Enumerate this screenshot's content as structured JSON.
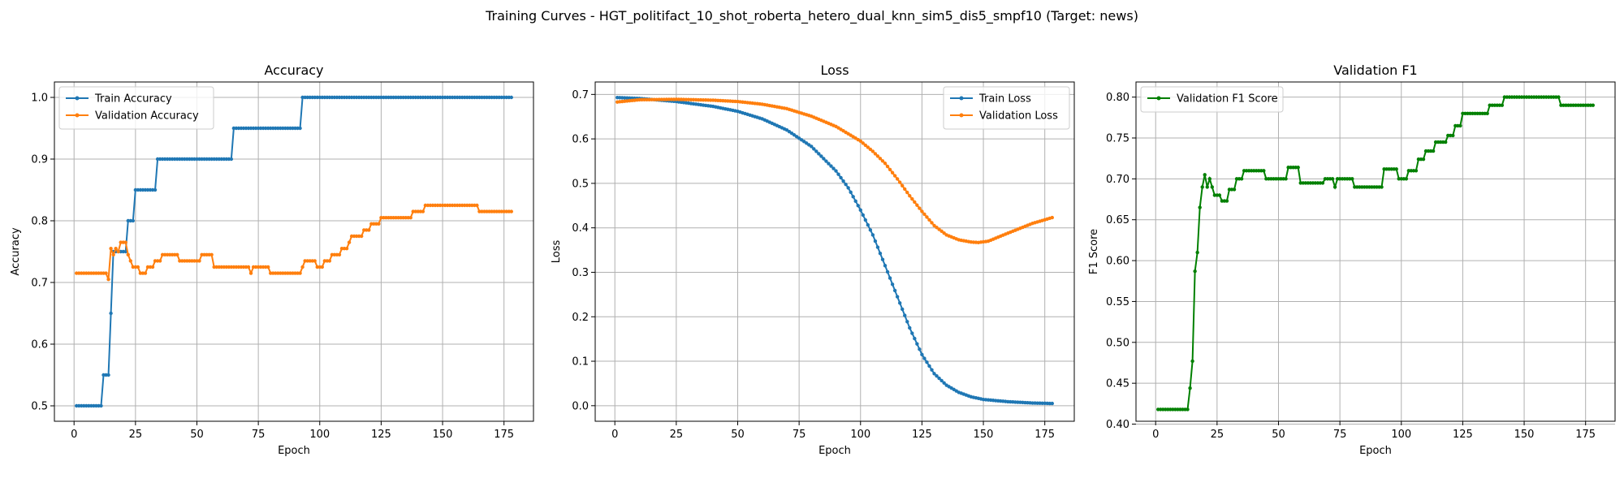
{
  "figure_title": "Training Curves - HGT_politifact_10_shot_roberta_hetero_dual_knn_sim5_dis5_smpf10 (Target: news)",
  "colors": {
    "blue": "#1f77b4",
    "orange": "#ff7f0e",
    "green": "#008000"
  },
  "chart_data": [
    {
      "type": "line",
      "title": "Accuracy",
      "xlabel": "Epoch",
      "ylabel": "Accuracy",
      "xlim": [
        -8,
        187
      ],
      "ylim": [
        0.475,
        1.025
      ],
      "xticks": [
        0,
        25,
        50,
        75,
        100,
        125,
        150,
        175
      ],
      "yticks": [
        0.5,
        0.6,
        0.7,
        0.8,
        0.9,
        1.0
      ],
      "ytick_labels": [
        "0.5",
        "0.6",
        "0.7",
        "0.8",
        "0.9",
        "1.0"
      ],
      "grid": true,
      "legend_position": "upper-left",
      "series": [
        {
          "name": "Train Accuracy",
          "color": "#1f77b4",
          "knots": [
            [
              1,
              0.5
            ],
            [
              11,
              0.5
            ],
            [
              12,
              0.55
            ],
            [
              14,
              0.55
            ],
            [
              15,
              0.65
            ],
            [
              16,
              0.75
            ],
            [
              21,
              0.75
            ],
            [
              22,
              0.8
            ],
            [
              24,
              0.8
            ],
            [
              25,
              0.85
            ],
            [
              33,
              0.85
            ],
            [
              34,
              0.9
            ],
            [
              64,
              0.9
            ],
            [
              65,
              0.95
            ],
            [
              92,
              0.95
            ],
            [
              93,
              1.0
            ],
            [
              178,
              1.0
            ]
          ]
        },
        {
          "name": "Validation Accuracy",
          "color": "#ff7f0e",
          "knots": [
            [
              1,
              0.715
            ],
            [
              13,
              0.715
            ],
            [
              14,
              0.705
            ],
            [
              15,
              0.755
            ],
            [
              16,
              0.745
            ],
            [
              17,
              0.755
            ],
            [
              18,
              0.75
            ],
            [
              19,
              0.765
            ],
            [
              21,
              0.765
            ],
            [
              22,
              0.745
            ],
            [
              23,
              0.735
            ],
            [
              24,
              0.725
            ],
            [
              26,
              0.725
            ],
            [
              27,
              0.715
            ],
            [
              29,
              0.715
            ],
            [
              30,
              0.725
            ],
            [
              32,
              0.725
            ],
            [
              33,
              0.735
            ],
            [
              35,
              0.735
            ],
            [
              36,
              0.745
            ],
            [
              42,
              0.745
            ],
            [
              43,
              0.735
            ],
            [
              51,
              0.735
            ],
            [
              52,
              0.745
            ],
            [
              56,
              0.745
            ],
            [
              57,
              0.725
            ],
            [
              71,
              0.725
            ],
            [
              72,
              0.715
            ],
            [
              73,
              0.725
            ],
            [
              79,
              0.725
            ],
            [
              80,
              0.715
            ],
            [
              92,
              0.715
            ],
            [
              93,
              0.725
            ],
            [
              94,
              0.735
            ],
            [
              98,
              0.735
            ],
            [
              99,
              0.725
            ],
            [
              101,
              0.725
            ],
            [
              102,
              0.735
            ],
            [
              104,
              0.735
            ],
            [
              105,
              0.745
            ],
            [
              108,
              0.745
            ],
            [
              109,
              0.755
            ],
            [
              111,
              0.755
            ],
            [
              112,
              0.765
            ],
            [
              113,
              0.775
            ],
            [
              117,
              0.775
            ],
            [
              118,
              0.785
            ],
            [
              120,
              0.785
            ],
            [
              121,
              0.795
            ],
            [
              124,
              0.795
            ],
            [
              125,
              0.805
            ],
            [
              137,
              0.805
            ],
            [
              138,
              0.815
            ],
            [
              142,
              0.815
            ],
            [
              143,
              0.825
            ],
            [
              164,
              0.825
            ],
            [
              165,
              0.815
            ],
            [
              178,
              0.815
            ]
          ]
        }
      ]
    },
    {
      "type": "line",
      "title": "Loss",
      "xlabel": "Epoch",
      "ylabel": "Loss",
      "xlim": [
        -8,
        187
      ],
      "ylim": [
        -0.035,
        0.728
      ],
      "xticks": [
        0,
        25,
        50,
        75,
        100,
        125,
        150,
        175
      ],
      "yticks": [
        0.0,
        0.1,
        0.2,
        0.3,
        0.4,
        0.5,
        0.6,
        0.7
      ],
      "ytick_labels": [
        "0.0",
        "0.1",
        "0.2",
        "0.3",
        "0.4",
        "0.5",
        "0.6",
        "0.7"
      ],
      "grid": true,
      "legend_position": "upper-right",
      "series": [
        {
          "name": "Train Loss",
          "color": "#1f77b4",
          "knots": [
            [
              1,
              0.693
            ],
            [
              10,
              0.691
            ],
            [
              25,
              0.684
            ],
            [
              40,
              0.673
            ],
            [
              50,
              0.662
            ],
            [
              60,
              0.645
            ],
            [
              70,
              0.62
            ],
            [
              80,
              0.583
            ],
            [
              90,
              0.528
            ],
            [
              95,
              0.49
            ],
            [
              100,
              0.44
            ],
            [
              105,
              0.384
            ],
            [
              110,
              0.315
            ],
            [
              115,
              0.245
            ],
            [
              120,
              0.175
            ],
            [
              125,
              0.115
            ],
            [
              130,
              0.072
            ],
            [
              135,
              0.046
            ],
            [
              140,
              0.03
            ],
            [
              145,
              0.02
            ],
            [
              150,
              0.014
            ],
            [
              160,
              0.009
            ],
            [
              170,
              0.006
            ],
            [
              178,
              0.005
            ]
          ]
        },
        {
          "name": "Validation Loss",
          "color": "#ff7f0e",
          "knots": [
            [
              1,
              0.683
            ],
            [
              10,
              0.688
            ],
            [
              25,
              0.689
            ],
            [
              40,
              0.687
            ],
            [
              50,
              0.684
            ],
            [
              60,
              0.678
            ],
            [
              70,
              0.668
            ],
            [
              80,
              0.651
            ],
            [
              90,
              0.628
            ],
            [
              100,
              0.595
            ],
            [
              105,
              0.572
            ],
            [
              110,
              0.545
            ],
            [
              115,
              0.51
            ],
            [
              120,
              0.472
            ],
            [
              125,
              0.437
            ],
            [
              130,
              0.405
            ],
            [
              135,
              0.384
            ],
            [
              140,
              0.373
            ],
            [
              145,
              0.368
            ],
            [
              148,
              0.367
            ],
            [
              152,
              0.37
            ],
            [
              160,
              0.388
            ],
            [
              170,
              0.41
            ],
            [
              178,
              0.423
            ]
          ]
        }
      ]
    },
    {
      "type": "line",
      "title": "Validation F1",
      "xlabel": "Epoch",
      "ylabel": "F1 Score",
      "xlim": [
        -8,
        187
      ],
      "ylim": [
        0.4035,
        0.8185
      ],
      "xticks": [
        0,
        25,
        50,
        75,
        100,
        125,
        150,
        175
      ],
      "yticks": [
        0.4,
        0.45,
        0.5,
        0.55,
        0.6,
        0.65,
        0.7,
        0.75,
        0.8
      ],
      "ytick_labels": [
        "0.40",
        "0.45",
        "0.50",
        "0.55",
        "0.60",
        "0.65",
        "0.70",
        "0.75",
        "0.80"
      ],
      "grid": true,
      "legend_position": "upper-left",
      "series": [
        {
          "name": "Validation F1 Score",
          "color": "#008000",
          "knots": [
            [
              1,
              0.418
            ],
            [
              13,
              0.418
            ],
            [
              14,
              0.444
            ],
            [
              15,
              0.477
            ],
            [
              16,
              0.587
            ],
            [
              17,
              0.61
            ],
            [
              18,
              0.665
            ],
            [
              19,
              0.69
            ],
            [
              20,
              0.705
            ],
            [
              21,
              0.69
            ],
            [
              22,
              0.7
            ],
            [
              23,
              0.69
            ],
            [
              24,
              0.68
            ],
            [
              26,
              0.68
            ],
            [
              27,
              0.673
            ],
            [
              29,
              0.673
            ],
            [
              30,
              0.687
            ],
            [
              32,
              0.687
            ],
            [
              33,
              0.7
            ],
            [
              35,
              0.7
            ],
            [
              36,
              0.71
            ],
            [
              44,
              0.71
            ],
            [
              45,
              0.7
            ],
            [
              53,
              0.7
            ],
            [
              54,
              0.714
            ],
            [
              58,
              0.714
            ],
            [
              59,
              0.695
            ],
            [
              68,
              0.695
            ],
            [
              69,
              0.7
            ],
            [
              72,
              0.7
            ],
            [
              73,
              0.69
            ],
            [
              74,
              0.7
            ],
            [
              80,
              0.7
            ],
            [
              81,
              0.69
            ],
            [
              92,
              0.69
            ],
            [
              93,
              0.712
            ],
            [
              98,
              0.712
            ],
            [
              99,
              0.7
            ],
            [
              102,
              0.7
            ],
            [
              103,
              0.71
            ],
            [
              106,
              0.71
            ],
            [
              107,
              0.724
            ],
            [
              109,
              0.724
            ],
            [
              110,
              0.734
            ],
            [
              113,
              0.734
            ],
            [
              114,
              0.745
            ],
            [
              118,
              0.745
            ],
            [
              119,
              0.753
            ],
            [
              121,
              0.753
            ],
            [
              122,
              0.765
            ],
            [
              124,
              0.765
            ],
            [
              125,
              0.78
            ],
            [
              135,
              0.78
            ],
            [
              136,
              0.79
            ],
            [
              141,
              0.79
            ],
            [
              142,
              0.8
            ],
            [
              164,
              0.8
            ],
            [
              165,
              0.79
            ],
            [
              178,
              0.79
            ]
          ]
        }
      ]
    }
  ]
}
